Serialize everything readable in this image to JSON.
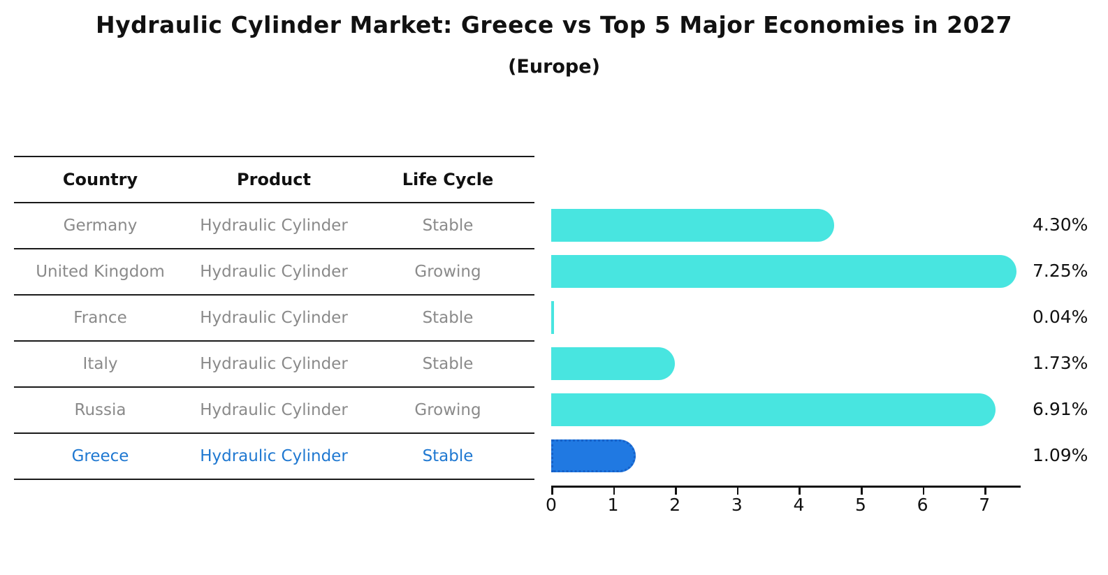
{
  "title": "Hydraulic Cylinder Market: Greece vs Top 5 Major Economies in 2027",
  "subtitle": "(Europe)",
  "table": {
    "headers": [
      "Country",
      "Product",
      "Life Cycle"
    ],
    "rows": [
      {
        "country": "Germany",
        "product": "Hydraulic Cylinder",
        "life_cycle": "Stable",
        "highlight": false
      },
      {
        "country": "United Kingdom",
        "product": "Hydraulic Cylinder",
        "life_cycle": "Growing",
        "highlight": false
      },
      {
        "country": "France",
        "product": "Hydraulic Cylinder",
        "life_cycle": "Stable",
        "highlight": false
      },
      {
        "country": "Italy",
        "product": "Hydraulic Cylinder",
        "life_cycle": "Stable",
        "highlight": false
      },
      {
        "country": "Russia",
        "product": "Hydraulic Cylinder",
        "life_cycle": "Growing",
        "highlight": false
      },
      {
        "country": "Greece",
        "product": "Hydraulic Cylinder",
        "life_cycle": "Stable",
        "highlight": true
      }
    ]
  },
  "chart_data": {
    "type": "bar",
    "orientation": "horizontal",
    "title": "Hydraulic Cylinder Market: Greece vs Top 5 Major Economies in 2027",
    "subtitle": "(Europe)",
    "categories": [
      "Germany",
      "United Kingdom",
      "France",
      "Italy",
      "Russia",
      "Greece"
    ],
    "values": [
      4.3,
      7.25,
      0.04,
      1.73,
      6.91,
      1.09
    ],
    "value_labels": [
      "4.30%",
      "7.25%",
      "0.04%",
      "1.73%",
      "6.91%",
      "1.09%"
    ],
    "highlight_category": "Greece",
    "xlabel": "",
    "ylabel": "",
    "xlim": [
      0,
      7.6
    ],
    "xticks": [
      "0",
      "1",
      "2",
      "3",
      "4",
      "5",
      "6",
      "7"
    ],
    "grid": false,
    "legend": false,
    "colors": {
      "bar": "#48e5e0",
      "highlight_bar": "#2079e2",
      "highlight_border": "#1661c8",
      "highlight_text": "#1f78d1",
      "row_text": "#8a8a8a",
      "header_text": "#111111",
      "axis": "#111111"
    }
  }
}
